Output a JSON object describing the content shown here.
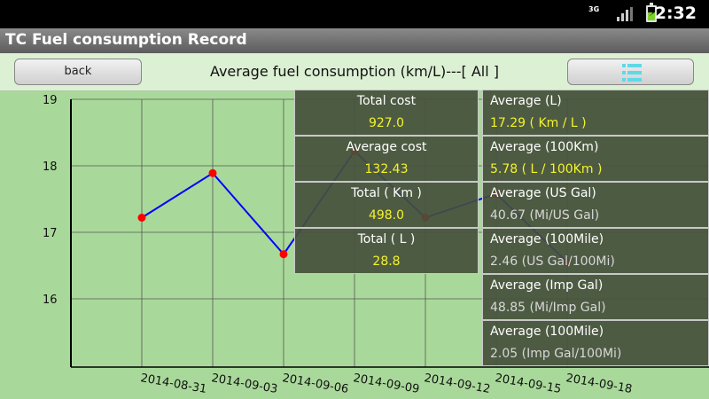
{
  "status_bar": {
    "network": "3G",
    "clock": "2:32"
  },
  "app": {
    "title": "TC Fuel consumption Record"
  },
  "toolbar": {
    "back_label": "back",
    "heading": "Average fuel consumption (km/L)---[ All ]",
    "menu_icon": "list-menu-icon"
  },
  "chart_data": {
    "type": "line",
    "x": [
      "2014-08-31",
      "2014-09-03",
      "2014-09-06",
      "2014-09-09",
      "2014-09-12",
      "2014-09-15",
      "2014-09-18"
    ],
    "y": [
      17.22,
      17.89,
      16.67,
      18.22,
      17.22,
      17.58,
      16.55
    ],
    "ylim": [
      15.0,
      19.0
    ],
    "yticks": [
      "19",
      "18",
      "17",
      "16"
    ],
    "grid": true,
    "line_color": "#0000ff",
    "marker_color": "#ff0000"
  },
  "summary_left": [
    {
      "label": "Total cost",
      "value": "927.0"
    },
    {
      "label": "Average cost",
      "value": "132.43"
    },
    {
      "label": "Total ( Km )",
      "value": "498.0"
    },
    {
      "label": "Total ( L )",
      "value": "28.8"
    }
  ],
  "summary_right": [
    {
      "label": "Average (L)",
      "value": "17.29 ( Km / L )",
      "value_color": "yellow"
    },
    {
      "label": "Average (100Km)",
      "value": "5.78 ( L / 100Km )",
      "value_color": "yellow"
    },
    {
      "label": "Average (US Gal)",
      "value": "40.67 (Mi/US Gal)",
      "value_color": "grey"
    },
    {
      "label": "Average (100Mile)",
      "value": "2.46 (US Gal/100Mi)",
      "value_color": "grey"
    },
    {
      "label": "Average (Imp Gal)",
      "value": "48.85 (Mi/Imp Gal)",
      "value_color": "grey"
    },
    {
      "label": "Average (100Mile)",
      "value": "2.05 (Imp Gal/100Mi)",
      "value_color": "grey"
    }
  ]
}
